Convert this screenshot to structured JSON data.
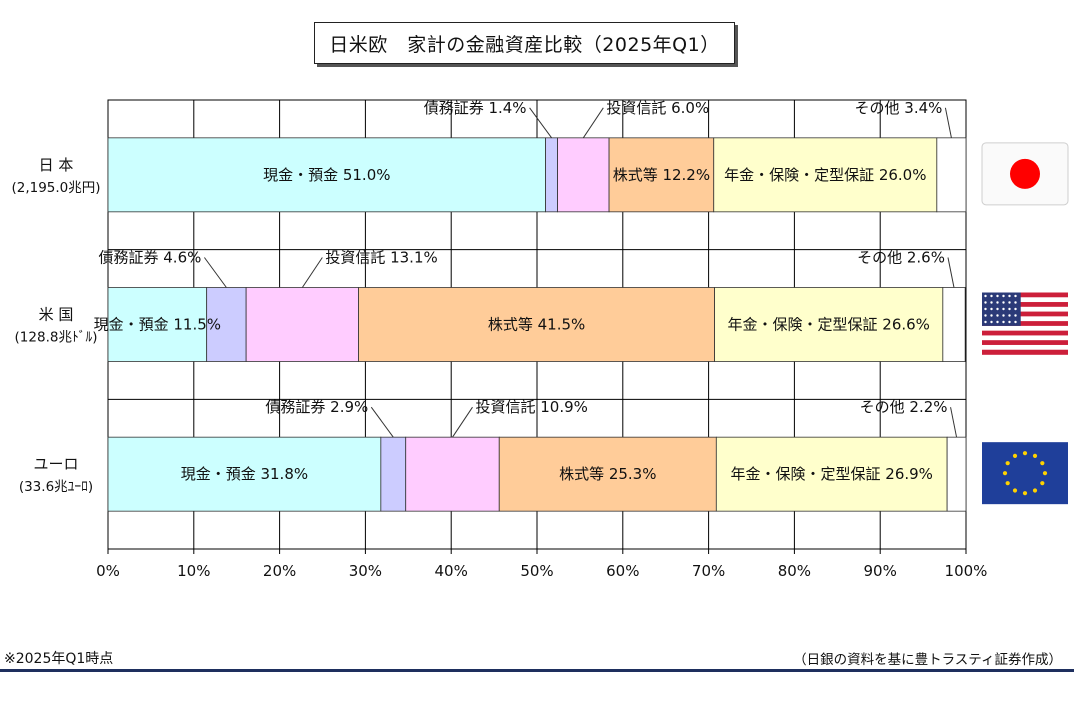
{
  "title": "日米欧　家計の金融資産比較（2025年Q1）",
  "footnote": "※2025年Q1時点",
  "source": "（日銀の資料を基に豊トラスティ証券作成）",
  "colors": {
    "cash": "#ccffff",
    "bonds": "#ccccff",
    "trusts": "#ffccff",
    "stocks": "#ffcc99",
    "pension": "#ffffcc",
    "other": "#ffffff",
    "title_border": "#222222",
    "bottom_rule": "#1e2f5e"
  },
  "chart_data": {
    "type": "bar",
    "orientation": "horizontal",
    "stacked": true,
    "title": "日米欧　家計の金融資産比較（2025年Q1）",
    "xlim": [
      0,
      100
    ],
    "x_ticks": [
      "0%",
      "10%",
      "20%",
      "30%",
      "40%",
      "50%",
      "60%",
      "70%",
      "80%",
      "90%",
      "100%"
    ],
    "grid": true,
    "categories": [
      {
        "name": "日 本",
        "sub": "(2,195.0兆円)",
        "flag": "japan-flag-icon"
      },
      {
        "name": "米 国",
        "sub": "(128.8兆ﾄﾞﾙ)",
        "flag": "usa-flag-icon"
      },
      {
        "name": "ユーロ",
        "sub": "(33.6兆ﾕｰﾛ)",
        "flag": "eu-flag-icon"
      }
    ],
    "series": [
      {
        "key": "cash",
        "name": "現金・預金",
        "values": [
          51.0,
          11.5,
          31.8
        ]
      },
      {
        "key": "bonds",
        "name": "債務証券",
        "values": [
          1.4,
          4.6,
          2.9
        ]
      },
      {
        "key": "trusts",
        "name": "投資信託",
        "values": [
          6.0,
          13.1,
          10.9
        ]
      },
      {
        "key": "stocks",
        "name": "株式等",
        "values": [
          12.2,
          41.5,
          25.3
        ]
      },
      {
        "key": "pension",
        "name": "年金・保険・定型保証",
        "values": [
          26.0,
          26.6,
          26.9
        ]
      },
      {
        "key": "other",
        "name": "その他",
        "values": [
          3.4,
          2.6,
          2.2
        ]
      }
    ],
    "data_labels": [
      [
        "現金・預金 51.0%",
        "債務証券 1.4%",
        "投資信託 6.0%",
        "株式等 12.2%",
        "年金・保険・定型保証 26.0%",
        "その他 3.4%"
      ],
      [
        "現金・預金 11.5%",
        "債務証券 4.6%",
        "投資信託 13.1%",
        "株式等 41.5%",
        "年金・保険・定型保証 26.6%",
        "その他 2.6%"
      ],
      [
        "現金・預金 31.8%",
        "債務証券 2.9%",
        "投資信託 10.9%",
        "株式等 25.3%",
        "年金・保険・定型保証 26.9%",
        "その他 2.2%"
      ]
    ]
  }
}
